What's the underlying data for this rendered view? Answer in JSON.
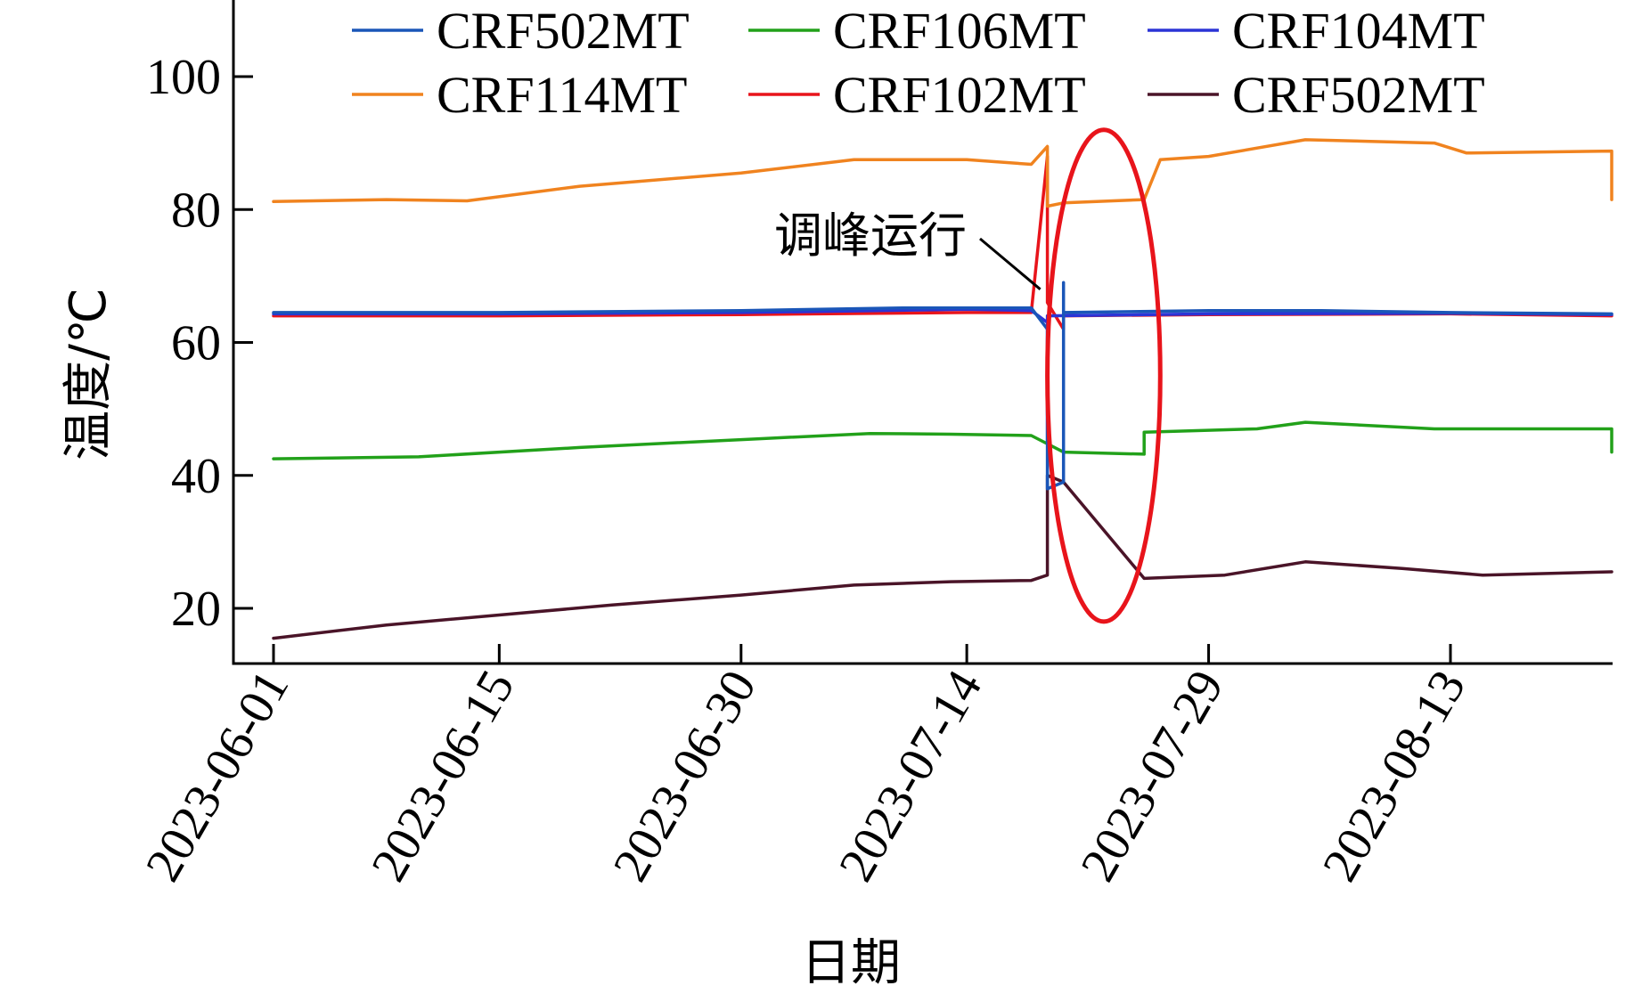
{
  "chart_data": {
    "type": "line",
    "xlabel": "日期",
    "ylabel": "温度/℃",
    "x_ticks": [
      "2023-06-01",
      "2023-06-15",
      "2023-06-30",
      "2023-07-14",
      "2023-07-29",
      "2023-08-13"
    ],
    "xlim": [
      "2023-06-01",
      "2023-08-23"
    ],
    "y_ticks": [
      20,
      40,
      60,
      80,
      100
    ],
    "ylim": [
      12,
      108
    ],
    "grid": false,
    "legend_position": "top",
    "annotation": {
      "text": "调峰运行",
      "ellipse_color": "#e8141b",
      "ellipse_range": {
        "x": [
          "2023-07-19",
          "2023-07-26"
        ],
        "y": [
          18,
          92
        ]
      },
      "arrow_to": {
        "x": "2023-07-19",
        "y": 68
      }
    },
    "series": [
      {
        "name": "CRF502MT",
        "color": "#1a56b8",
        "points": [
          [
            "2023-06-01",
            64.5
          ],
          [
            "2023-06-15",
            64.5
          ],
          [
            "2023-06-30",
            64.8
          ],
          [
            "2023-07-10",
            65.2
          ],
          [
            "2023-07-18",
            65.2
          ],
          [
            "2023-07-19",
            62
          ],
          [
            "2023-07-19",
            38
          ],
          [
            "2023-07-20",
            39
          ],
          [
            "2023-07-20",
            69
          ],
          [
            "2023-07-20",
            64.5
          ],
          [
            "2023-07-29",
            64.8
          ],
          [
            "2023-08-05",
            64.8
          ],
          [
            "2023-08-13",
            64.5
          ],
          [
            "2023-08-23",
            64.3
          ]
        ]
      },
      {
        "name": "CRF106MT",
        "color": "#22a11a",
        "points": [
          [
            "2023-06-01",
            42.5
          ],
          [
            "2023-06-10",
            42.8
          ],
          [
            "2023-06-20",
            44.2
          ],
          [
            "2023-07-01",
            45.5
          ],
          [
            "2023-07-08",
            46.3
          ],
          [
            "2023-07-13",
            46.2
          ],
          [
            "2023-07-18",
            46
          ],
          [
            "2023-07-20",
            43.5
          ],
          [
            "2023-07-25",
            43.2
          ],
          [
            "2023-07-25",
            46.5
          ],
          [
            "2023-08-01",
            47
          ],
          [
            "2023-08-04",
            48
          ],
          [
            "2023-08-12",
            47
          ],
          [
            "2023-08-23",
            47
          ],
          [
            "2023-08-23",
            43.5
          ]
        ]
      },
      {
        "name": "CRF104MT",
        "color": "#2b34d6",
        "points": [
          [
            "2023-06-01",
            64.3
          ],
          [
            "2023-06-15",
            64.3
          ],
          [
            "2023-06-30",
            64.5
          ],
          [
            "2023-07-14",
            65
          ],
          [
            "2023-07-18",
            64.8
          ],
          [
            "2023-07-19",
            63
          ],
          [
            "2023-07-19",
            45
          ],
          [
            "2023-07-19",
            64
          ],
          [
            "2023-07-29",
            64.3
          ],
          [
            "2023-08-13",
            64.4
          ],
          [
            "2023-08-23",
            64.2
          ]
        ]
      },
      {
        "name": "CRF114MT",
        "color": "#f0831f",
        "points": [
          [
            "2023-06-01",
            81.2
          ],
          [
            "2023-06-08",
            81.5
          ],
          [
            "2023-06-13",
            81.3
          ],
          [
            "2023-06-20",
            83.5
          ],
          [
            "2023-06-30",
            85.5
          ],
          [
            "2023-07-07",
            87.5
          ],
          [
            "2023-07-14",
            87.5
          ],
          [
            "2023-07-18",
            86.8
          ],
          [
            "2023-07-19",
            89.5
          ],
          [
            "2023-07-19",
            80.5
          ],
          [
            "2023-07-20",
            81
          ],
          [
            "2023-07-25",
            81.5
          ],
          [
            "2023-07-26",
            87.5
          ],
          [
            "2023-07-29",
            88
          ],
          [
            "2023-08-04",
            90.5
          ],
          [
            "2023-08-12",
            90
          ],
          [
            "2023-08-14",
            88.5
          ],
          [
            "2023-08-23",
            88.8
          ],
          [
            "2023-08-23",
            81.5
          ]
        ]
      },
      {
        "name": "CRF102MT",
        "color": "#e8141b",
        "points": [
          [
            "2023-06-01",
            64
          ],
          [
            "2023-06-15",
            64
          ],
          [
            "2023-06-30",
            64.2
          ],
          [
            "2023-07-14",
            64.5
          ],
          [
            "2023-07-18",
            64.5
          ],
          [
            "2023-07-19",
            88
          ],
          [
            "2023-07-19",
            66
          ],
          [
            "2023-07-20",
            62
          ],
          [
            "2023-07-20",
            64
          ],
          [
            "2023-07-29",
            64.2
          ],
          [
            "2023-08-13",
            64.3
          ],
          [
            "2023-08-23",
            64
          ]
        ]
      },
      {
        "name": "CRF502MT",
        "color": "#4a1428",
        "points": [
          [
            "2023-06-01",
            15.5
          ],
          [
            "2023-06-08",
            17.5
          ],
          [
            "2023-06-15",
            19
          ],
          [
            "2023-06-22",
            20.5
          ],
          [
            "2023-06-30",
            22
          ],
          [
            "2023-07-07",
            23.5
          ],
          [
            "2023-07-13",
            24
          ],
          [
            "2023-07-18",
            24.2
          ],
          [
            "2023-07-19",
            25
          ],
          [
            "2023-07-19",
            40
          ],
          [
            "2023-07-20",
            39
          ],
          [
            "2023-07-25",
            24.5
          ],
          [
            "2023-07-30",
            25
          ],
          [
            "2023-08-04",
            27
          ],
          [
            "2023-08-10",
            26
          ],
          [
            "2023-08-15",
            25
          ],
          [
            "2023-08-23",
            25.5
          ]
        ]
      }
    ]
  }
}
